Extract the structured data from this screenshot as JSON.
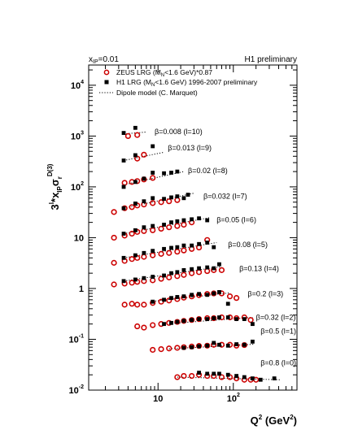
{
  "chart_data": {
    "type": "scatter",
    "title": "",
    "header_left": "x",
    "header_left_sub": "IP",
    "header_left_value": "=0.01",
    "header_right": "H1 preliminary",
    "xlabel": "Q",
    "xlabel_sup": "2",
    "xlabel_unit": " (GeV",
    "xlabel_unit_sup": "2",
    "xlabel_close": ")",
    "ylabel_base": "3",
    "ylabel_sup": "l",
    "ylabel_mid": "*x",
    "ylabel_sub": "IP",
    "ylabel_sigma": "σ",
    "ylabel_sigma_sub": "r",
    "ylabel_sigma_sup": "D(3)",
    "xscale": "log",
    "yscale": "log",
    "xlim": [
      1.2,
      700
    ],
    "ylim": [
      0.01,
      25000
    ],
    "x_tick_labels": [
      {
        "value": 10,
        "base": "10",
        "exp": ""
      },
      {
        "value": 100,
        "base": "10",
        "exp": "2"
      }
    ],
    "y_tick_labels": [
      {
        "value": 0.01,
        "base": "10",
        "exp": "-2"
      },
      {
        "value": 0.1,
        "base": "10",
        "exp": "-1"
      },
      {
        "value": 1,
        "base": "1",
        "exp": ""
      },
      {
        "value": 10,
        "base": "10",
        "exp": ""
      },
      {
        "value": 100,
        "base": "10",
        "exp": "2"
      },
      {
        "value": 1000,
        "base": "10",
        "exp": "3"
      },
      {
        "value": 10000,
        "base": "10",
        "exp": "4"
      }
    ],
    "legend": {
      "placement": "top-left",
      "entries": [
        {
          "marker": "open-circle",
          "color": "#cc0000",
          "text": "ZEUS LRG (M",
          "sub": "N",
          "text2": "<1.6 GeV)*0.87"
        },
        {
          "marker": "filled-square",
          "color": "#000000",
          "text": "H1 LRG (M",
          "sub": "N",
          "text2": "<1.6 GeV) 1996-2007 preliminary"
        },
        {
          "marker": "dotted-line",
          "color": "#000000",
          "text": "Dipole model (C. Marquet)",
          "sub": "",
          "text2": ""
        }
      ]
    },
    "series_styles": {
      "zeus": {
        "marker": "open-circle",
        "color": "#cc0000"
      },
      "h1": {
        "marker": "filled-square",
        "color": "#000000"
      },
      "dipole": {
        "line": "dotted",
        "color": "#000000"
      }
    },
    "bins": [
      {
        "label": "β=0.008 (l=10)",
        "label_at": [
          9.0,
          1100
        ],
        "zeus": [
          [
            4.0,
            1000
          ],
          [
            5.3,
            1050
          ]
        ],
        "h1": [
          [
            3.5,
            1150
          ],
          [
            5.0,
            1450
          ]
        ],
        "dipole": [
          [
            3.5,
            1100
          ],
          [
            7.0,
            1200
          ]
        ]
      },
      {
        "label": "β=0.013 (l=9)",
        "label_at": [
          13.5,
          520
        ],
        "zeus": [
          [
            5.3,
            360
          ],
          [
            6.5,
            430
          ]
        ],
        "h1": [
          [
            3.5,
            330
          ],
          [
            5.0,
            420
          ],
          [
            8.5,
            630
          ]
        ],
        "dipole": [
          [
            3.5,
            330
          ],
          [
            12,
            480
          ]
        ]
      },
      {
        "label": "β=0.02 (l=8)",
        "label_at": [
          25,
          185
        ],
        "zeus": [
          [
            3.6,
            120
          ],
          [
            4.5,
            125
          ],
          [
            5.3,
            130
          ],
          [
            6.5,
            140
          ],
          [
            8.5,
            150
          ]
        ],
        "h1": [
          [
            3.5,
            100
          ],
          [
            5.0,
            125
          ],
          [
            6.5,
            145
          ],
          [
            8.5,
            190
          ],
          [
            12,
            185
          ],
          [
            15,
            190
          ],
          [
            18,
            200
          ]
        ],
        "dipole": [
          [
            3.5,
            110
          ],
          [
            22,
            200
          ]
        ]
      },
      {
        "label": "β=0.032 (l=7)",
        "label_at": [
          40,
          58
        ],
        "zeus": [
          [
            2.6,
            32
          ],
          [
            3.6,
            38
          ],
          [
            4.5,
            40
          ],
          [
            5.3,
            43
          ],
          [
            6.5,
            45
          ],
          [
            8.5,
            48
          ],
          [
            11,
            50
          ],
          [
            14,
            52
          ],
          [
            18,
            55
          ]
        ],
        "h1": [
          [
            3.5,
            38
          ],
          [
            5.0,
            47
          ],
          [
            6.5,
            52
          ],
          [
            8.5,
            60
          ],
          [
            12,
            58
          ],
          [
            15,
            62
          ],
          [
            18,
            65
          ],
          [
            22,
            60
          ],
          [
            25,
            70
          ]
        ],
        "dipole": [
          [
            3.5,
            38
          ],
          [
            30,
            75
          ]
        ]
      },
      {
        "label": "β=0.05 (l=6)",
        "label_at": [
          60,
          20
        ],
        "zeus": [
          [
            2.6,
            10
          ],
          [
            3.6,
            11
          ],
          [
            4.5,
            12
          ],
          [
            5.3,
            13
          ],
          [
            6.5,
            13.5
          ],
          [
            8.5,
            14
          ],
          [
            11,
            15
          ],
          [
            14,
            16
          ],
          [
            18,
            17
          ],
          [
            22,
            18
          ],
          [
            28,
            20
          ]
        ],
        "h1": [
          [
            3.5,
            12
          ],
          [
            5.0,
            14
          ],
          [
            6.5,
            16
          ],
          [
            8.5,
            17
          ],
          [
            12,
            18
          ],
          [
            15,
            20
          ],
          [
            18,
            21
          ],
          [
            22,
            22
          ],
          [
            28,
            23
          ],
          [
            35,
            24
          ],
          [
            45,
            22
          ]
        ],
        "dipole": [
          [
            3.5,
            12
          ],
          [
            50,
            25
          ]
        ]
      },
      {
        "label": "β=0.08 (l=5)",
        "label_at": [
          85,
          6.5
        ],
        "zeus": [
          [
            2.6,
            3.2
          ],
          [
            3.6,
            3.5
          ],
          [
            4.5,
            3.8
          ],
          [
            5.3,
            4.0
          ],
          [
            6.5,
            4.2
          ],
          [
            8.5,
            4.5
          ],
          [
            11,
            4.8
          ],
          [
            14,
            5.0
          ],
          [
            18,
            5.3
          ],
          [
            22,
            5.6
          ],
          [
            28,
            6.0
          ],
          [
            35,
            6.4
          ],
          [
            45,
            9.0
          ]
        ],
        "h1": [
          [
            3.5,
            4.0
          ],
          [
            5.0,
            4.5
          ],
          [
            6.5,
            5.0
          ],
          [
            8.5,
            5.5
          ],
          [
            12,
            6.0
          ],
          [
            15,
            6.3
          ],
          [
            18,
            6.5
          ],
          [
            22,
            7.0
          ],
          [
            28,
            7.0
          ],
          [
            35,
            7.5
          ],
          [
            45,
            8.0
          ],
          [
            55,
            6.5
          ]
        ],
        "dipole": [
          [
            3.5,
            4.0
          ],
          [
            60,
            8.0
          ]
        ]
      },
      {
        "label": "β=0.13 (l=4)",
        "label_at": [
          120,
          2.2
        ],
        "zeus": [
          [
            2.6,
            1.2
          ],
          [
            3.6,
            1.25
          ],
          [
            4.5,
            1.3
          ],
          [
            5.3,
            1.35
          ],
          [
            6.5,
            1.4
          ],
          [
            8.5,
            1.45
          ],
          [
            11,
            1.55
          ],
          [
            14,
            1.65
          ],
          [
            18,
            1.75
          ],
          [
            22,
            1.85
          ],
          [
            28,
            2.0
          ],
          [
            35,
            2.1
          ],
          [
            45,
            2.2
          ],
          [
            55,
            2.3
          ],
          [
            70,
            2.3
          ]
        ],
        "h1": [
          [
            3.5,
            1.4
          ],
          [
            5.0,
            1.5
          ],
          [
            6.5,
            1.6
          ],
          [
            8.5,
            1.7
          ],
          [
            12,
            1.8
          ],
          [
            15,
            2.0
          ],
          [
            18,
            2.1
          ],
          [
            22,
            2.3
          ],
          [
            28,
            2.4
          ],
          [
            35,
            2.5
          ],
          [
            45,
            2.6
          ],
          [
            55,
            2.5
          ],
          [
            65,
            3.0
          ]
        ],
        "dipole": [
          [
            3.5,
            1.4
          ],
          [
            70,
            2.7
          ]
        ]
      },
      {
        "label": "β=0.2 (l=3)",
        "label_at": [
          155,
          0.7
        ],
        "zeus": [
          [
            3.6,
            0.48
          ],
          [
            4.5,
            0.5
          ],
          [
            5.3,
            0.48
          ],
          [
            6.5,
            0.48
          ],
          [
            8.5,
            0.52
          ],
          [
            11,
            0.55
          ],
          [
            14,
            0.58
          ],
          [
            18,
            0.62
          ],
          [
            22,
            0.66
          ],
          [
            28,
            0.7
          ],
          [
            35,
            0.74
          ],
          [
            45,
            0.78
          ],
          [
            55,
            0.8
          ],
          [
            70,
            0.8
          ],
          [
            90,
            0.7
          ],
          [
            110,
            0.65
          ]
        ],
        "h1": [
          [
            8.5,
            0.55
          ],
          [
            12,
            0.6
          ],
          [
            15,
            0.65
          ],
          [
            18,
            0.68
          ],
          [
            22,
            0.7
          ],
          [
            28,
            0.75
          ],
          [
            35,
            0.78
          ],
          [
            45,
            0.75
          ],
          [
            55,
            0.8
          ],
          [
            65,
            0.85
          ],
          [
            85,
            0.5
          ]
        ],
        "dipole": [
          [
            8.5,
            0.56
          ],
          [
            90,
            0.82
          ]
        ]
      },
      {
        "label": "β=0.32 (l=2)",
        "label_at": [
          200,
          0.24
        ],
        "zeus": [
          [
            5.3,
            0.18
          ],
          [
            6.5,
            0.17
          ],
          [
            8.5,
            0.19
          ],
          [
            11,
            0.2
          ],
          [
            14,
            0.21
          ],
          [
            18,
            0.22
          ],
          [
            22,
            0.23
          ],
          [
            28,
            0.24
          ],
          [
            35,
            0.25
          ],
          [
            45,
            0.26
          ],
          [
            55,
            0.26
          ],
          [
            70,
            0.27
          ],
          [
            90,
            0.27
          ],
          [
            110,
            0.26
          ],
          [
            140,
            0.27
          ],
          [
            170,
            0.24
          ]
        ],
        "h1": [
          [
            12,
            0.2
          ],
          [
            15,
            0.21
          ],
          [
            18,
            0.22
          ],
          [
            22,
            0.23
          ],
          [
            28,
            0.24
          ],
          [
            35,
            0.25
          ],
          [
            45,
            0.25
          ],
          [
            55,
            0.26
          ],
          [
            65,
            0.27
          ],
          [
            85,
            0.27
          ],
          [
            110,
            0.25
          ],
          [
            140,
            0.25
          ],
          [
            180,
            0.2
          ]
        ],
        "dipole": [
          [
            12,
            0.2
          ],
          [
            180,
            0.27
          ]
        ]
      },
      {
        "label": "β=0.5 (l=1)",
        "label_at": [
          230,
          0.13
        ],
        "zeus": [
          [
            8.5,
            0.062
          ],
          [
            11,
            0.064
          ],
          [
            14,
            0.066
          ],
          [
            18,
            0.068
          ],
          [
            22,
            0.07
          ],
          [
            28,
            0.072
          ],
          [
            35,
            0.074
          ],
          [
            45,
            0.075
          ],
          [
            55,
            0.078
          ],
          [
            70,
            0.078
          ],
          [
            90,
            0.078
          ],
          [
            110,
            0.075
          ],
          [
            140,
            0.077
          ]
        ],
        "h1": [
          [
            22,
            0.068
          ],
          [
            28,
            0.07
          ],
          [
            35,
            0.073
          ],
          [
            45,
            0.075
          ],
          [
            55,
            0.085
          ],
          [
            65,
            0.078
          ],
          [
            85,
            0.075
          ],
          [
            110,
            0.08
          ],
          [
            140,
            0.078
          ],
          [
            180,
            0.09
          ]
        ],
        "dipole": [
          [
            14,
            0.065
          ],
          [
            190,
            0.08
          ]
        ]
      },
      {
        "label": "β=0.8 (l=0)",
        "label_at": [
          230,
          0.031
        ],
        "zeus": [
          [
            18,
            0.018
          ],
          [
            22,
            0.019
          ],
          [
            28,
            0.019
          ],
          [
            35,
            0.02
          ],
          [
            45,
            0.019
          ],
          [
            55,
            0.019
          ],
          [
            70,
            0.018
          ],
          [
            90,
            0.018
          ],
          [
            110,
            0.017
          ],
          [
            140,
            0.016
          ],
          [
            170,
            0.016
          ],
          [
            200,
            0.016
          ]
        ],
        "h1": [
          [
            35,
            0.022
          ],
          [
            45,
            0.021
          ],
          [
            55,
            0.021
          ],
          [
            65,
            0.021
          ],
          [
            85,
            0.02
          ],
          [
            110,
            0.019
          ],
          [
            140,
            0.018
          ],
          [
            180,
            0.017
          ],
          [
            230,
            0.016
          ],
          [
            350,
            0.017
          ]
        ],
        "dipole": [
          [
            18,
            0.018
          ],
          [
            420,
            0.016
          ]
        ]
      }
    ]
  }
}
